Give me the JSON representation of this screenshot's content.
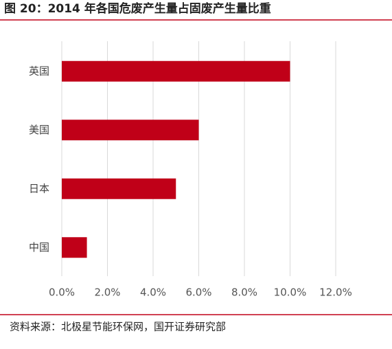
{
  "chart_data": {
    "type": "bar",
    "orientation": "horizontal",
    "title": "图 20：2014 年各国危废产生量占固废产生量比重",
    "source": "资料来源：北极星节能环保网，国开证券研究部",
    "categories": [
      "英国",
      "美国",
      "日本",
      "中国"
    ],
    "values": [
      10.0,
      6.0,
      5.0,
      1.1
    ],
    "color": "#c00018",
    "xlim": [
      0,
      12
    ],
    "xticks": [
      {
        "value": 0,
        "label": "0.0%"
      },
      {
        "value": 2,
        "label": "2.0%"
      },
      {
        "value": 4,
        "label": "4.0%"
      },
      {
        "value": 6,
        "label": "6.0%"
      },
      {
        "value": 8,
        "label": "8.0%"
      },
      {
        "value": 10,
        "label": "10.0%"
      },
      {
        "value": 12,
        "label": "12.0%"
      }
    ],
    "grid": true
  }
}
